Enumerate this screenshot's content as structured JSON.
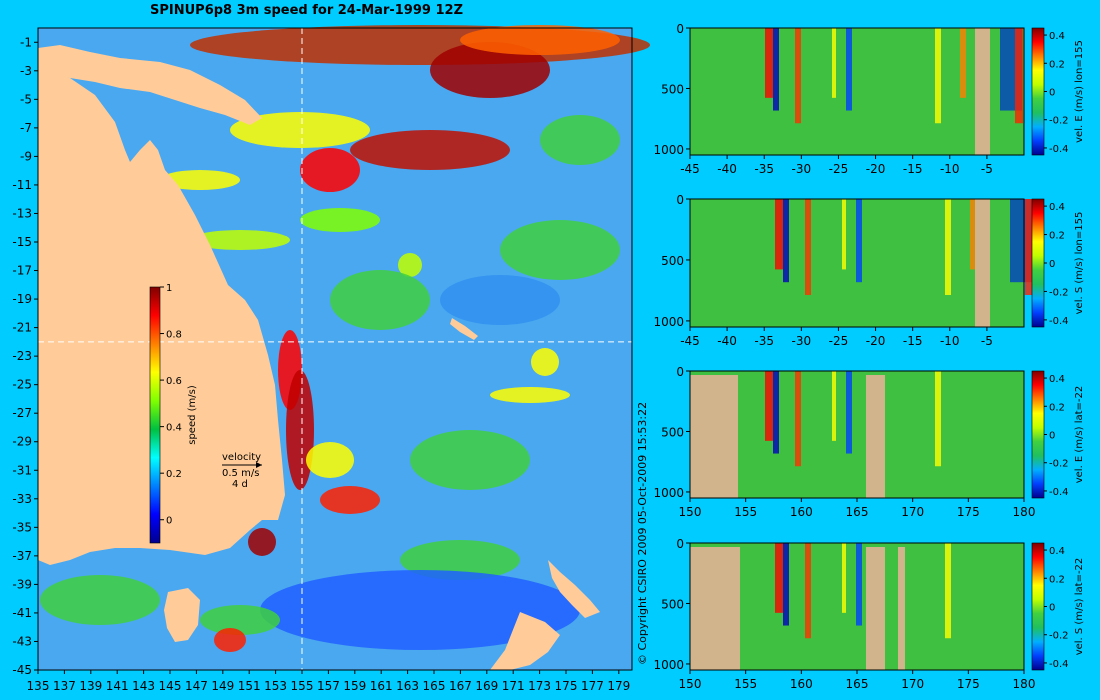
{
  "title": "SPINUP6p8 3m speed for 24-Mar-1999 12Z",
  "copyright": "© Copyright CSIRO 2009   05-Oct-2009 15:53:22",
  "colors": {
    "background": "#00ccff",
    "land": "#ffcc99",
    "section_land": "#d2b48c",
    "ocean_base": "#4aa8f0",
    "guide_line": "#ffffff"
  },
  "colormap": [
    "#00008f",
    "#0000ff",
    "#0080ff",
    "#00ffff",
    "#00c040",
    "#80ff00",
    "#ffff00",
    "#ff8000",
    "#ff0000",
    "#800000"
  ],
  "chart_data": [
    {
      "type": "heatmap",
      "name": "speed-map",
      "title": "SPINUP6p8 3m speed for 24-Mar-1999 12Z",
      "x_ticks": [
        135,
        137,
        139,
        141,
        143,
        145,
        147,
        149,
        151,
        153,
        155,
        157,
        159,
        161,
        163,
        165,
        167,
        169,
        171,
        173,
        175,
        177,
        179
      ],
      "y_ticks": [
        -1,
        -3,
        -5,
        -7,
        -9,
        -11,
        -13,
        -15,
        -17,
        -19,
        -21,
        -23,
        -25,
        -27,
        -29,
        -31,
        -33,
        -35,
        -37,
        -39,
        -41,
        -43,
        -45
      ],
      "xlim": [
        135,
        180
      ],
      "ylim": [
        -45,
        0
      ],
      "section_lines": {
        "lon": 155,
        "lat": -22
      },
      "colorbar": {
        "label": "speed (m/s)",
        "ticks": [
          "1",
          "0.8",
          "0.6",
          "0.4",
          "0.2",
          "0"
        ],
        "range": [
          -0.1,
          1
        ]
      },
      "velocity_key": {
        "label": "velocity",
        "speed": "0.5 m/s",
        "duration": "4 d"
      }
    },
    {
      "type": "heatmap",
      "name": "section-1",
      "x_ticks": [
        "-45",
        "-40",
        "-35",
        "-30",
        "-25",
        "-20",
        "-15",
        "-10",
        "-5"
      ],
      "y_ticks": [
        "0",
        "500",
        "1000"
      ],
      "colorbar": {
        "label": "vel. E (m/s) lon=155",
        "ticks": [
          "0.4",
          "0.2",
          "0",
          "-0.2",
          "-0.4"
        ]
      }
    },
    {
      "type": "heatmap",
      "name": "section-2",
      "x_ticks": [
        "-45",
        "-40",
        "-35",
        "-30",
        "-25",
        "-20",
        "-15",
        "-10",
        "-5"
      ],
      "y_ticks": [
        "0",
        "500",
        "1000"
      ],
      "colorbar": {
        "label": "vel. S (m/s) lon=155",
        "ticks": [
          "0.4",
          "0.2",
          "0",
          "-0.2",
          "-0.4"
        ]
      }
    },
    {
      "type": "heatmap",
      "name": "section-3",
      "x_ticks": [
        "150",
        "155",
        "160",
        "165",
        "170",
        "175",
        "180"
      ],
      "y_ticks": [
        "0",
        "500",
        "1000"
      ],
      "colorbar": {
        "label": "vel. E (m/s) lat=-22",
        "ticks": [
          "0.4",
          "0.2",
          "0",
          "-0.2",
          "-0.4"
        ]
      }
    },
    {
      "type": "heatmap",
      "name": "section-4",
      "x_ticks": [
        "150",
        "155",
        "160",
        "165",
        "170",
        "175",
        "180"
      ],
      "y_ticks": [
        "0",
        "500",
        "1000"
      ],
      "colorbar": {
        "label": "vel. S (m/s) lat=-22",
        "ticks": [
          "0.4",
          "0.2",
          "0",
          "-0.2",
          "-0.4"
        ]
      }
    }
  ]
}
